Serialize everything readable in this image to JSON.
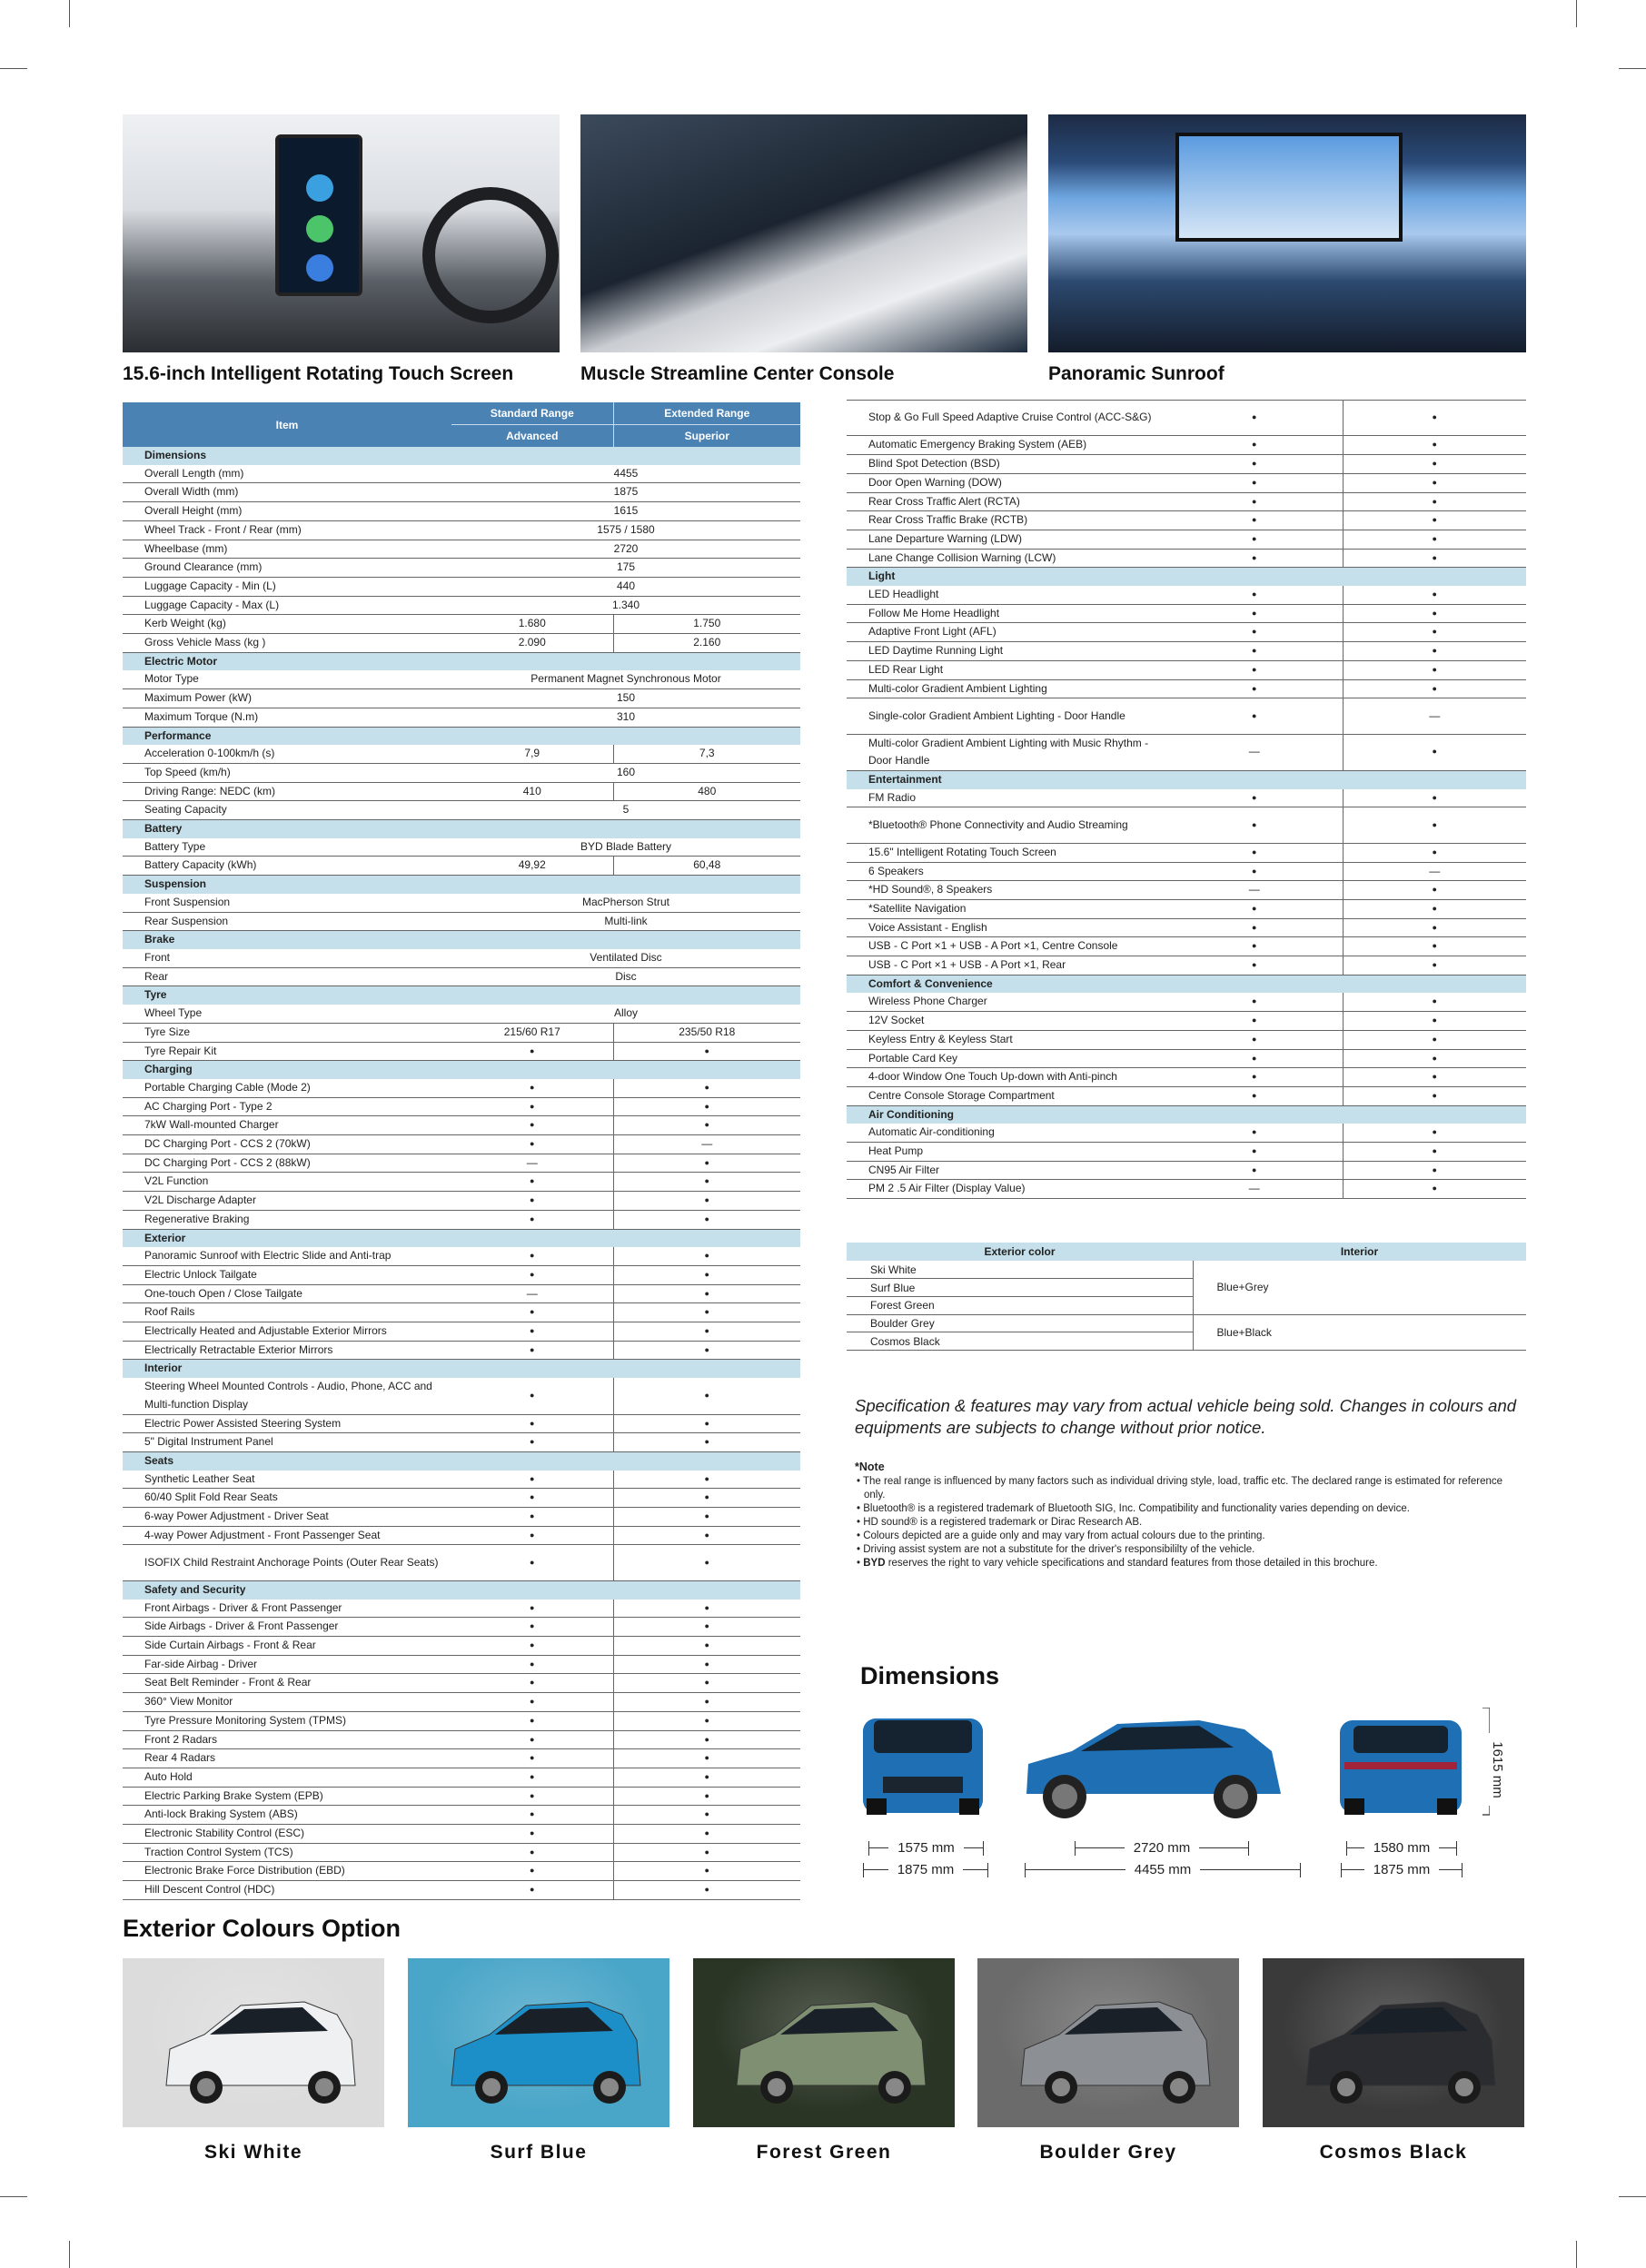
{
  "features": [
    {
      "caption": "15.6-inch Intelligent Rotating Touch Screen"
    },
    {
      "caption": "Muscle Streamline Center Console"
    },
    {
      "caption": "Panoramic Sunroof"
    }
  ],
  "spec_header": {
    "item": "Item",
    "standard_range": "Standard Range",
    "extended_range": "Extended Range",
    "advanced": "Advanced",
    "superior": "Superior"
  },
  "spec_left": [
    {
      "s": "Dimensions"
    },
    {
      "l": "Overall Length (mm)",
      "v": "4455"
    },
    {
      "l": "Overall Width (mm)",
      "v": "1875"
    },
    {
      "l": "Overall Height (mm)",
      "v": "1615"
    },
    {
      "l": "Wheel Track - Front / Rear (mm)",
      "v": "1575 / 1580"
    },
    {
      "l": "Wheelbase (mm)",
      "v": "2720"
    },
    {
      "l": "Ground Clearance (mm)",
      "v": "175"
    },
    {
      "l": "Luggage Capacity - Min (L)",
      "v": "440"
    },
    {
      "l": "Luggage Capacity - Max (L)",
      "v": "1.340"
    },
    {
      "l": "Kerb Weight (kg)",
      "a": "1.680",
      "b": "1.750"
    },
    {
      "l": "Gross Vehicle Mass (kg )",
      "a": "2.090",
      "b": "2.160"
    },
    {
      "s": "Electric Motor"
    },
    {
      "l": "Motor Type",
      "v": "Permanent Magnet Synchronous Motor"
    },
    {
      "l": "Maximum Power (kW)",
      "v": "150"
    },
    {
      "l": "Maximum Torque (N.m)",
      "v": "310"
    },
    {
      "s": "Performance"
    },
    {
      "l": "Acceleration 0-100km/h (s)",
      "a": "7,9",
      "b": "7,3"
    },
    {
      "l": "Top Speed (km/h)",
      "v": "160"
    },
    {
      "l": "Driving Range: NEDC (km)",
      "a": "410",
      "b": "480"
    },
    {
      "l": "Seating Capacity",
      "v": "5"
    },
    {
      "s": "Battery"
    },
    {
      "l": "Battery Type",
      "v": "BYD Blade Battery"
    },
    {
      "l": "Battery Capacity (kWh)",
      "a": "49,92",
      "b": "60,48"
    },
    {
      "s": "Suspension"
    },
    {
      "l": "Front Suspension",
      "v": "MacPherson Strut"
    },
    {
      "l": "Rear Suspension",
      "v": "Multi-link"
    },
    {
      "s": "Brake"
    },
    {
      "l": "Front",
      "v": "Ventilated Disc"
    },
    {
      "l": "Rear",
      "v": "Disc"
    },
    {
      "s": "Tyre"
    },
    {
      "l": "Wheel Type",
      "v": "Alloy"
    },
    {
      "l": "Tyre Size",
      "a": "215/60 R17",
      "b": "235/50 R18"
    },
    {
      "l": "Tyre Repair Kit",
      "a": "●",
      "b": "●"
    },
    {
      "s": "Charging"
    },
    {
      "l": "Portable Charging Cable (Mode 2)",
      "a": "●",
      "b": "●"
    },
    {
      "l": "AC Charging Port - Type 2",
      "a": "●",
      "b": "●"
    },
    {
      "l": "7kW Wall-mounted Charger",
      "a": "●",
      "b": "●"
    },
    {
      "l": "DC Charging Port - CCS 2 (70kW)",
      "a": "●",
      "b": "—"
    },
    {
      "l": "DC Charging Port - CCS 2 (88kW)",
      "a": "—",
      "b": "●"
    },
    {
      "l": "V2L Function",
      "a": "●",
      "b": "●"
    },
    {
      "l": "V2L Discharge Adapter",
      "a": "●",
      "b": "●"
    },
    {
      "l": "Regenerative Braking",
      "a": "●",
      "b": "●"
    },
    {
      "s": "Exterior"
    },
    {
      "l": "Panoramic Sunroof with Electric Slide and Anti-trap",
      "a": "●",
      "b": "●"
    },
    {
      "l": "Electric Unlock Tailgate",
      "a": "●",
      "b": "●"
    },
    {
      "l": "One-touch Open / Close Tailgate",
      "a": "—",
      "b": "●"
    },
    {
      "l": "Roof Rails",
      "a": "●",
      "b": "●"
    },
    {
      "l": "Electrically Heated and Adjustable Exterior Mirrors",
      "a": "●",
      "b": "●"
    },
    {
      "l": "Electrically Retractable Exterior Mirrors",
      "a": "●",
      "b": "●"
    },
    {
      "s": "Interior"
    },
    {
      "l": "Steering Wheel Mounted Controls - Audio, Phone, ACC and Multi-function Display",
      "a": "●",
      "b": "●",
      "d": true
    },
    {
      "l": "Electric Power Assisted Steering System",
      "a": "●",
      "b": "●"
    },
    {
      "l": "5\" Digital Instrument Panel",
      "a": "●",
      "b": "●"
    },
    {
      "s": "Seats"
    },
    {
      "l": "Synthetic Leather Seat",
      "a": "●",
      "b": "●"
    },
    {
      "l": "60/40 Split Fold Rear Seats",
      "a": "●",
      "b": "●"
    },
    {
      "l": "6-way Power Adjustment - Driver Seat",
      "a": "●",
      "b": "●"
    },
    {
      "l": "4-way Power Adjustment - Front Passenger Seat",
      "a": "●",
      "b": "●"
    },
    {
      "l": "ISOFIX Child Restraint Anchorage Points (Outer Rear Seats)",
      "a": "●",
      "b": "●",
      "d": true
    },
    {
      "s": "Safety and Security"
    },
    {
      "l": "Front Airbags - Driver & Front Passenger",
      "a": "●",
      "b": "●"
    },
    {
      "l": "Side Airbags - Driver & Front Passenger",
      "a": "●",
      "b": "●"
    },
    {
      "l": "Side Curtain Airbags - Front & Rear",
      "a": "●",
      "b": "●"
    },
    {
      "l": "Far-side Airbag - Driver",
      "a": "●",
      "b": "●"
    },
    {
      "l": "Seat Belt Reminder - Front & Rear",
      "a": "●",
      "b": "●"
    },
    {
      "l": "360° View Monitor",
      "a": "●",
      "b": "●"
    },
    {
      "l": "Tyre Pressure Monitoring System (TPMS)",
      "a": "●",
      "b": "●"
    },
    {
      "l": "Front 2 Radars",
      "a": "●",
      "b": "●"
    },
    {
      "l": "Rear 4 Radars",
      "a": "●",
      "b": "●"
    },
    {
      "l": "Auto Hold",
      "a": "●",
      "b": "●"
    },
    {
      "l": "Electric Parking Brake System (EPB)",
      "a": "●",
      "b": "●"
    },
    {
      "l": "Anti-lock Braking System (ABS)",
      "a": "●",
      "b": "●"
    },
    {
      "l": "Electronic Stability Control (ESC)",
      "a": "●",
      "b": "●"
    },
    {
      "l": "Traction Control System (TCS)",
      "a": "●",
      "b": "●"
    },
    {
      "l": "Electronic Brake Force Distribution (EBD)",
      "a": "●",
      "b": "●"
    },
    {
      "l": "Hill Descent Control (HDC)",
      "a": "●",
      "b": "●"
    }
  ],
  "spec_right": [
    {
      "l": "Stop & Go Full Speed Adaptive Cruise Control (ACC-S&G)",
      "a": "●",
      "b": "●",
      "d": true
    },
    {
      "l": "Automatic Emergency Braking System (AEB)",
      "a": "●",
      "b": "●"
    },
    {
      "l": "Blind Spot Detection (BSD)",
      "a": "●",
      "b": "●"
    },
    {
      "l": "Door Open Warning (DOW)",
      "a": "●",
      "b": "●"
    },
    {
      "l": "Rear Cross Traffic Alert (RCTA)",
      "a": "●",
      "b": "●"
    },
    {
      "l": "Rear Cross Traffic Brake (RCTB)",
      "a": "●",
      "b": "●"
    },
    {
      "l": "Lane Departure Warning (LDW)",
      "a": "●",
      "b": "●"
    },
    {
      "l": "Lane Change Collision Warning (LCW)",
      "a": "●",
      "b": "●"
    },
    {
      "s": "Light"
    },
    {
      "l": "LED Headlight",
      "a": "●",
      "b": "●"
    },
    {
      "l": "Follow Me Home Headlight",
      "a": "●",
      "b": "●"
    },
    {
      "l": "Adaptive Front Light (AFL)",
      "a": "●",
      "b": "●"
    },
    {
      "l": "LED Daytime Running Light",
      "a": "●",
      "b": "●"
    },
    {
      "l": "LED Rear Light",
      "a": "●",
      "b": "●"
    },
    {
      "l": "Multi-color Gradient Ambient Lighting",
      "a": "●",
      "b": "●"
    },
    {
      "l": "Single-color Gradient Ambient Lighting - Door Handle",
      "a": "●",
      "b": "—",
      "d": true
    },
    {
      "l": "Multi-color Gradient Ambient Lighting with Music Rhythm - Door Handle",
      "a": "—",
      "b": "●",
      "d": true
    },
    {
      "s": "Entertainment"
    },
    {
      "l": "FM Radio",
      "a": "●",
      "b": "●"
    },
    {
      "l": "*Bluetooth® Phone Connectivity and Audio Streaming",
      "a": "●",
      "b": "●",
      "d": true
    },
    {
      "l": "15.6\" Intelligent Rotating Touch Screen",
      "a": "●",
      "b": "●"
    },
    {
      "l": "6 Speakers",
      "a": "●",
      "b": "—"
    },
    {
      "l": "*HD Sound®, 8 Speakers",
      "a": "—",
      "b": "●"
    },
    {
      "l": "*Satellite Navigation",
      "a": "●",
      "b": "●"
    },
    {
      "l": "Voice Assistant - English",
      "a": "●",
      "b": "●"
    },
    {
      "l": "USB - C Port  ×1 + USB - A Port  ×1, Centre Console",
      "a": "●",
      "b": "●"
    },
    {
      "l": "USB - C Port  ×1 + USB - A Port  ×1, Rear",
      "a": "●",
      "b": "●"
    },
    {
      "s": "Comfort & Convenience"
    },
    {
      "l": "Wireless Phone Charger",
      "a": "●",
      "b": "●"
    },
    {
      "l": "12V Socket",
      "a": "●",
      "b": "●"
    },
    {
      "l": "Keyless Entry & Keyless Start",
      "a": "●",
      "b": "●"
    },
    {
      "l": "Portable Card Key",
      "a": "●",
      "b": "●"
    },
    {
      "l": "4-door Window One Touch Up-down with Anti-pinch",
      "a": "●",
      "b": "●"
    },
    {
      "l": "Centre Console Storage Compartment",
      "a": "●",
      "b": "●"
    },
    {
      "s": "Air Conditioning"
    },
    {
      "l": "Automatic Air-conditioning",
      "a": "●",
      "b": "●"
    },
    {
      "l": "Heat Pump",
      "a": "●",
      "b": "●"
    },
    {
      "l": "CN95 Air Filter",
      "a": "●",
      "b": "●"
    },
    {
      "l": "PM 2 .5 Air Filter (Display Value)",
      "a": "—",
      "b": "●"
    }
  ],
  "color_table": {
    "header_exterior": "Exterior color",
    "header_interior": "Interior",
    "exterior": [
      "Ski White",
      "Surf Blue",
      "Forest Green",
      "Boulder Grey",
      "Cosmos Black"
    ],
    "interior_1": "Blue+Grey",
    "interior_2": "Blue+Black"
  },
  "disclaimer": "Specification & features may vary from actual vehicle being sold. Changes in colours and equipments are subjects to change without prior notice.",
  "notes": {
    "title": "*Note",
    "items": [
      "The real range is influenced by many factors such as individual driving style, load, traffic etc. The declared range is estimated for reference only.",
      "Bluetooth® is a registered trademark of Bluetooth SIG, Inc. Compatibility and functionality varies depending on device.",
      "HD sound® is a registered trademark or Dirac Research AB.",
      "Colours depicted are a guide only and may vary from actual colours due to the printing.",
      "Driving assist system are not a substitute for the driver's responsibililty of the vehicle."
    ],
    "last_brand": "BYD",
    "last_text": " reserves the right to vary vehicle specifications and standard features from those detailed in this brochure."
  },
  "dimensions": {
    "title": "Dimensions",
    "front_track": "1575 mm",
    "front_width": "1875 mm",
    "wheelbase": "2720 mm",
    "length": "4455 mm",
    "rear_track": "1580 mm",
    "rear_width": "1875 mm",
    "height": "1615 mm",
    "car_color": "#1f6fb5"
  },
  "exterior_colours": {
    "title": "Exterior Colours Option",
    "options": [
      {
        "name": "Ski White",
        "color": "#eef0f2",
        "bg": "#dcdcdc"
      },
      {
        "name": "Surf Blue",
        "color": "#1c8fc8",
        "bg": "#4aa6c8"
      },
      {
        "name": "Forest Green",
        "color": "#7f8f72",
        "bg": "#2b3526"
      },
      {
        "name": "Boulder Grey",
        "color": "#8c9095",
        "bg": "#6b6b6b"
      },
      {
        "name": "Cosmos Black",
        "color": "#2a2c30",
        "bg": "#3a3a3a"
      }
    ]
  },
  "colors": {
    "header_blue": "#4a82b4",
    "section_bg": "#c5e0ea"
  }
}
